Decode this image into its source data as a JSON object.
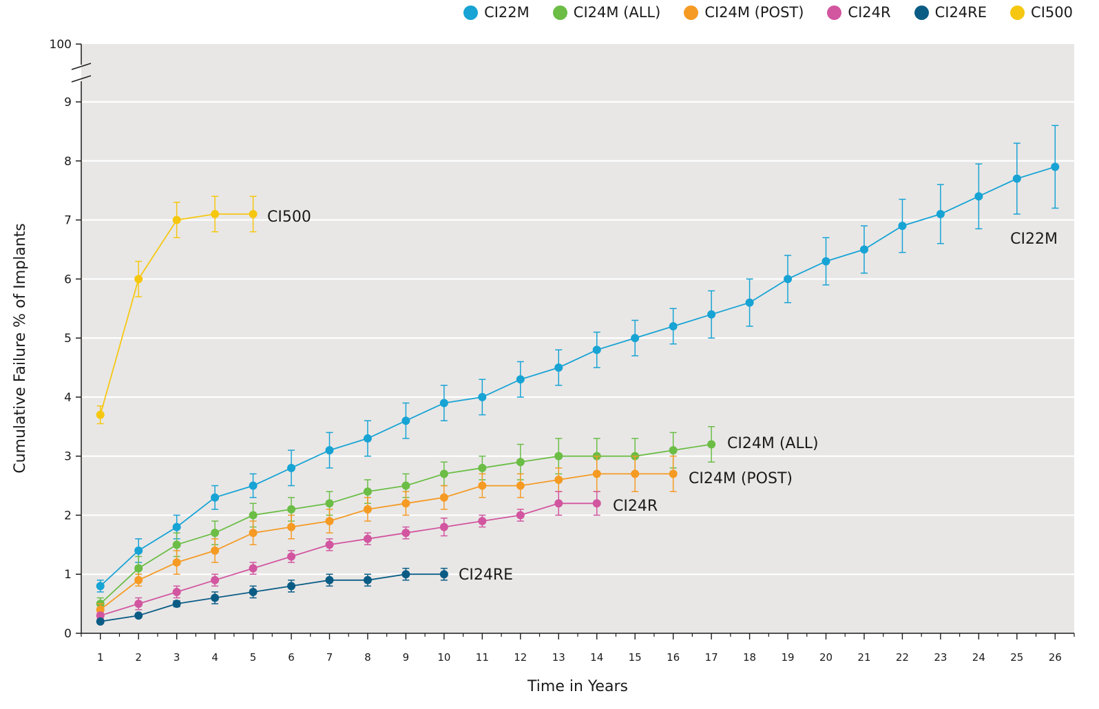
{
  "chart_data": {
    "type": "line",
    "title": "",
    "xlabel": "Time in Years",
    "ylabel": "Cumulative Failure % of Implants",
    "x": [
      1,
      2,
      3,
      4,
      5,
      6,
      7,
      8,
      9,
      10,
      11,
      12,
      13,
      14,
      15,
      16,
      17,
      18,
      19,
      20,
      21,
      22,
      23,
      24,
      25,
      26
    ],
    "xlim": [
      0.5,
      26.5
    ],
    "ylim": [
      0,
      9.8
    ],
    "y_ticks": [
      "0",
      "1",
      "2",
      "3",
      "4",
      "5",
      "6",
      "7",
      "8",
      "9",
      "100"
    ],
    "y_axis_break": true,
    "grid": true,
    "legend_position": "top-right",
    "series": [
      {
        "name": "CI22M",
        "color": "#17a3d4",
        "label": "CI22M",
        "points": [
          [
            1,
            0.8
          ],
          [
            2,
            1.4
          ],
          [
            3,
            1.8
          ],
          [
            4,
            2.3
          ],
          [
            5,
            2.5
          ],
          [
            6,
            2.8
          ],
          [
            7,
            3.1
          ],
          [
            8,
            3.3
          ],
          [
            9,
            3.6
          ],
          [
            10,
            3.9
          ],
          [
            11,
            4.0
          ],
          [
            12,
            4.3
          ],
          [
            13,
            4.5
          ],
          [
            14,
            4.8
          ],
          [
            15,
            5.0
          ],
          [
            16,
            5.2
          ],
          [
            17,
            5.4
          ],
          [
            18,
            5.6
          ],
          [
            19,
            6.0
          ],
          [
            20,
            6.3
          ],
          [
            21,
            6.5
          ],
          [
            22,
            6.9
          ],
          [
            23,
            7.1
          ],
          [
            24,
            7.4
          ],
          [
            25,
            7.7
          ],
          [
            26,
            7.9
          ]
        ],
        "error": [
          0.1,
          0.2,
          0.2,
          0.2,
          0.2,
          0.3,
          0.3,
          0.3,
          0.3,
          0.3,
          0.3,
          0.3,
          0.3,
          0.3,
          0.3,
          0.3,
          0.4,
          0.4,
          0.4,
          0.4,
          0.4,
          0.45,
          0.5,
          0.55,
          0.6,
          0.7
        ]
      },
      {
        "name": "CI24M (ALL)",
        "color": "#6bbd45",
        "label": "CI24M (ALL)",
        "points": [
          [
            1,
            0.5
          ],
          [
            2,
            1.1
          ],
          [
            3,
            1.5
          ],
          [
            4,
            1.7
          ],
          [
            5,
            2.0
          ],
          [
            6,
            2.1
          ],
          [
            7,
            2.2
          ],
          [
            8,
            2.4
          ],
          [
            9,
            2.5
          ],
          [
            10,
            2.7
          ],
          [
            11,
            2.8
          ],
          [
            12,
            2.9
          ],
          [
            13,
            3.0
          ],
          [
            14,
            3.0
          ],
          [
            15,
            3.0
          ],
          [
            16,
            3.1
          ],
          [
            17,
            3.2
          ]
        ],
        "error": [
          0.1,
          0.2,
          0.2,
          0.2,
          0.2,
          0.2,
          0.2,
          0.2,
          0.2,
          0.2,
          0.2,
          0.3,
          0.3,
          0.3,
          0.3,
          0.3,
          0.3
        ]
      },
      {
        "name": "CI24M (POST)",
        "color": "#f59a23",
        "label": "CI24M (POST)",
        "points": [
          [
            1,
            0.4
          ],
          [
            2,
            0.9
          ],
          [
            3,
            1.2
          ],
          [
            4,
            1.4
          ],
          [
            5,
            1.7
          ],
          [
            6,
            1.8
          ],
          [
            7,
            1.9
          ],
          [
            8,
            2.1
          ],
          [
            9,
            2.2
          ],
          [
            10,
            2.3
          ],
          [
            11,
            2.5
          ],
          [
            12,
            2.5
          ],
          [
            13,
            2.6
          ],
          [
            14,
            2.7
          ],
          [
            15,
            2.7
          ],
          [
            16,
            2.7
          ]
        ],
        "error": [
          0.1,
          0.1,
          0.2,
          0.2,
          0.2,
          0.2,
          0.2,
          0.2,
          0.2,
          0.2,
          0.2,
          0.2,
          0.2,
          0.3,
          0.3,
          0.3
        ]
      },
      {
        "name": "CI24R",
        "color": "#d2559f",
        "label": "CI24R",
        "points": [
          [
            1,
            0.3
          ],
          [
            2,
            0.5
          ],
          [
            3,
            0.7
          ],
          [
            4,
            0.9
          ],
          [
            5,
            1.1
          ],
          [
            6,
            1.3
          ],
          [
            7,
            1.5
          ],
          [
            8,
            1.6
          ],
          [
            9,
            1.7
          ],
          [
            10,
            1.8
          ],
          [
            11,
            1.9
          ],
          [
            12,
            2.0
          ],
          [
            13,
            2.2
          ],
          [
            14,
            2.2
          ]
        ],
        "error": [
          0.05,
          0.1,
          0.1,
          0.1,
          0.1,
          0.1,
          0.1,
          0.1,
          0.1,
          0.15,
          0.1,
          0.1,
          0.2,
          0.2
        ]
      },
      {
        "name": "CI24RE",
        "color": "#0b5c85",
        "label": "CI24RE",
        "points": [
          [
            1,
            0.2
          ],
          [
            2,
            0.3
          ],
          [
            3,
            0.5
          ],
          [
            4,
            0.6
          ],
          [
            5,
            0.7
          ],
          [
            6,
            0.8
          ],
          [
            7,
            0.9
          ],
          [
            8,
            0.9
          ],
          [
            9,
            1.0
          ],
          [
            10,
            1.0
          ]
        ],
        "error": [
          0.03,
          0.03,
          0.05,
          0.1,
          0.1,
          0.1,
          0.1,
          0.1,
          0.1,
          0.1
        ]
      },
      {
        "name": "CI500",
        "color": "#f6c710",
        "label": "CI500",
        "points": [
          [
            1,
            3.7
          ],
          [
            2,
            6.0
          ],
          [
            3,
            7.0
          ],
          [
            4,
            7.1
          ],
          [
            5,
            7.1
          ]
        ],
        "error": [
          0.15,
          0.3,
          0.3,
          0.3,
          0.3
        ]
      }
    ]
  }
}
